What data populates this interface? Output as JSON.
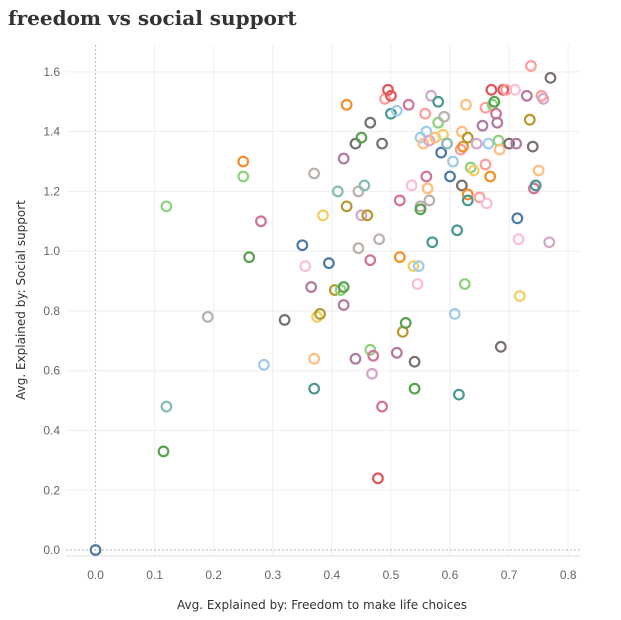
{
  "chart_data": {
    "type": "scatter",
    "title": "freedom vs social support",
    "xlabel": "Avg. Explained by: Freedom to make life choices",
    "ylabel": "Avg. Explained by: Social support",
    "xlim": [
      -0.05,
      0.82
    ],
    "ylim": [
      -0.02,
      1.69
    ],
    "xticks": [
      "0.0",
      "0.1",
      "0.2",
      "0.3",
      "0.4",
      "0.5",
      "0.6",
      "0.7",
      "0.8"
    ],
    "yticks": [
      "0.0",
      "0.2",
      "0.4",
      "0.6",
      "0.8",
      "1.0",
      "1.2",
      "1.4",
      "1.6"
    ],
    "grid": true,
    "legend": "none",
    "palette": [
      "#4e79a7",
      "#a0cbe8",
      "#f28e2b",
      "#ffbe7d",
      "#59a14f",
      "#8cd17d",
      "#b6992d",
      "#f1ce63",
      "#499894",
      "#86bcb6",
      "#e15759",
      "#ff9d9a",
      "#79706e",
      "#bab0ac",
      "#d37295",
      "#fabfd2",
      "#b07aa1",
      "#d4a6c8"
    ],
    "points": [
      {
        "x": 0.0,
        "y": 0.0,
        "c": "#4e79a7"
      },
      {
        "x": 0.12,
        "y": 1.15,
        "c": "#8cd17d"
      },
      {
        "x": 0.12,
        "y": 0.48,
        "c": "#86bcb6"
      },
      {
        "x": 0.115,
        "y": 0.33,
        "c": "#59a14f"
      },
      {
        "x": 0.19,
        "y": 0.78,
        "c": "#bab0ac"
      },
      {
        "x": 0.25,
        "y": 1.3,
        "c": "#f28e2b"
      },
      {
        "x": 0.25,
        "y": 1.25,
        "c": "#8cd17d"
      },
      {
        "x": 0.26,
        "y": 0.98,
        "c": "#59a14f"
      },
      {
        "x": 0.28,
        "y": 1.1,
        "c": "#d37295"
      },
      {
        "x": 0.285,
        "y": 0.62,
        "c": "#a0cbe8"
      },
      {
        "x": 0.32,
        "y": 0.77,
        "c": "#79706e"
      },
      {
        "x": 0.35,
        "y": 1.02,
        "c": "#4e79a7"
      },
      {
        "x": 0.355,
        "y": 0.95,
        "c": "#fabfd2"
      },
      {
        "x": 0.365,
        "y": 0.88,
        "c": "#b07aa1"
      },
      {
        "x": 0.37,
        "y": 1.26,
        "c": "#bab0ac"
      },
      {
        "x": 0.37,
        "y": 0.64,
        "c": "#ffbe7d"
      },
      {
        "x": 0.37,
        "y": 0.54,
        "c": "#499894"
      },
      {
        "x": 0.375,
        "y": 0.78,
        "c": "#f1ce63"
      },
      {
        "x": 0.38,
        "y": 0.79,
        "c": "#b6992d"
      },
      {
        "x": 0.385,
        "y": 1.12,
        "c": "#f1ce63"
      },
      {
        "x": 0.395,
        "y": 0.96,
        "c": "#4e79a7"
      },
      {
        "x": 0.405,
        "y": 0.87,
        "c": "#b6992d"
      },
      {
        "x": 0.41,
        "y": 1.2,
        "c": "#86bcb6"
      },
      {
        "x": 0.415,
        "y": 0.87,
        "c": "#8cd17d"
      },
      {
        "x": 0.42,
        "y": 1.31,
        "c": "#b07aa1"
      },
      {
        "x": 0.42,
        "y": 0.88,
        "c": "#59a14f"
      },
      {
        "x": 0.42,
        "y": 0.82,
        "c": "#b07aa1"
      },
      {
        "x": 0.425,
        "y": 1.49,
        "c": "#f28e2b"
      },
      {
        "x": 0.425,
        "y": 1.15,
        "c": "#b6992d"
      },
      {
        "x": 0.44,
        "y": 1.36,
        "c": "#79706e"
      },
      {
        "x": 0.44,
        "y": 0.64,
        "c": "#b07aa1"
      },
      {
        "x": 0.445,
        "y": 1.2,
        "c": "#bab0ac"
      },
      {
        "x": 0.445,
        "y": 1.01,
        "c": "#bab0ac"
      },
      {
        "x": 0.45,
        "y": 1.38,
        "c": "#59a14f"
      },
      {
        "x": 0.45,
        "y": 1.12,
        "c": "#d4a6c8"
      },
      {
        "x": 0.455,
        "y": 1.22,
        "c": "#86bcb6"
      },
      {
        "x": 0.46,
        "y": 1.12,
        "c": "#b6992d"
      },
      {
        "x": 0.465,
        "y": 1.43,
        "c": "#79706e"
      },
      {
        "x": 0.465,
        "y": 0.97,
        "c": "#d37295"
      },
      {
        "x": 0.465,
        "y": 0.67,
        "c": "#8cd17d"
      },
      {
        "x": 0.468,
        "y": 0.59,
        "c": "#d4a6c8"
      },
      {
        "x": 0.47,
        "y": 0.65,
        "c": "#d37295"
      },
      {
        "x": 0.478,
        "y": 0.24,
        "c": "#e15759"
      },
      {
        "x": 0.48,
        "y": 1.04,
        "c": "#bab0ac"
      },
      {
        "x": 0.485,
        "y": 1.36,
        "c": "#79706e"
      },
      {
        "x": 0.485,
        "y": 0.48,
        "c": "#d37295"
      },
      {
        "x": 0.49,
        "y": 1.51,
        "c": "#ff9d9a"
      },
      {
        "x": 0.495,
        "y": 1.54,
        "c": "#e15759"
      },
      {
        "x": 0.5,
        "y": 1.52,
        "c": "#e15759"
      },
      {
        "x": 0.5,
        "y": 1.46,
        "c": "#499894"
      },
      {
        "x": 0.51,
        "y": 1.47,
        "c": "#a0cbe8"
      },
      {
        "x": 0.51,
        "y": 0.66,
        "c": "#b07aa1"
      },
      {
        "x": 0.515,
        "y": 1.17,
        "c": "#d37295"
      },
      {
        "x": 0.515,
        "y": 0.98,
        "c": "#f28e2b"
      },
      {
        "x": 0.52,
        "y": 0.73,
        "c": "#b6992d"
      },
      {
        "x": 0.525,
        "y": 0.76,
        "c": "#59a14f"
      },
      {
        "x": 0.53,
        "y": 1.49,
        "c": "#d37295"
      },
      {
        "x": 0.535,
        "y": 1.22,
        "c": "#fabfd2"
      },
      {
        "x": 0.538,
        "y": 0.95,
        "c": "#f1ce63"
      },
      {
        "x": 0.54,
        "y": 0.63,
        "c": "#79706e"
      },
      {
        "x": 0.54,
        "y": 0.54,
        "c": "#59a14f"
      },
      {
        "x": 0.545,
        "y": 0.89,
        "c": "#fabfd2"
      },
      {
        "x": 0.547,
        "y": 0.95,
        "c": "#a0cbe8"
      },
      {
        "x": 0.55,
        "y": 1.38,
        "c": "#a0cbe8"
      },
      {
        "x": 0.55,
        "y": 1.15,
        "c": "#bab0ac"
      },
      {
        "x": 0.55,
        "y": 1.14,
        "c": "#59a14f"
      },
      {
        "x": 0.555,
        "y": 1.36,
        "c": "#ffbe7d"
      },
      {
        "x": 0.558,
        "y": 1.46,
        "c": "#ff9d9a"
      },
      {
        "x": 0.56,
        "y": 1.4,
        "c": "#a0cbe8"
      },
      {
        "x": 0.56,
        "y": 1.25,
        "c": "#d37295"
      },
      {
        "x": 0.562,
        "y": 1.21,
        "c": "#ffbe7d"
      },
      {
        "x": 0.565,
        "y": 1.17,
        "c": "#bab0ac"
      },
      {
        "x": 0.565,
        "y": 1.37,
        "c": "#d4a6c8"
      },
      {
        "x": 0.568,
        "y": 1.52,
        "c": "#d4a6c8"
      },
      {
        "x": 0.57,
        "y": 1.03,
        "c": "#499894"
      },
      {
        "x": 0.575,
        "y": 1.38,
        "c": "#ffbe7d"
      },
      {
        "x": 0.58,
        "y": 1.5,
        "c": "#499894"
      },
      {
        "x": 0.58,
        "y": 1.43,
        "c": "#8cd17d"
      },
      {
        "x": 0.585,
        "y": 1.33,
        "c": "#4e79a7"
      },
      {
        "x": 0.588,
        "y": 1.39,
        "c": "#f1ce63"
      },
      {
        "x": 0.59,
        "y": 1.45,
        "c": "#bab0ac"
      },
      {
        "x": 0.595,
        "y": 1.36,
        "c": "#86bcb6"
      },
      {
        "x": 0.6,
        "y": 1.25,
        "c": "#4e79a7"
      },
      {
        "x": 0.605,
        "y": 1.3,
        "c": "#a0cbe8"
      },
      {
        "x": 0.608,
        "y": 0.79,
        "c": "#a0cbe8"
      },
      {
        "x": 0.612,
        "y": 1.07,
        "c": "#499894"
      },
      {
        "x": 0.615,
        "y": 0.52,
        "c": "#499894"
      },
      {
        "x": 0.618,
        "y": 1.34,
        "c": "#ff9d9a"
      },
      {
        "x": 0.62,
        "y": 1.4,
        "c": "#ffbe7d"
      },
      {
        "x": 0.62,
        "y": 1.22,
        "c": "#79706e"
      },
      {
        "x": 0.622,
        "y": 1.35,
        "c": "#f28e2b"
      },
      {
        "x": 0.625,
        "y": 0.89,
        "c": "#8cd17d"
      },
      {
        "x": 0.627,
        "y": 1.49,
        "c": "#ffbe7d"
      },
      {
        "x": 0.63,
        "y": 1.38,
        "c": "#b6992d"
      },
      {
        "x": 0.63,
        "y": 1.19,
        "c": "#f28e2b"
      },
      {
        "x": 0.63,
        "y": 1.17,
        "c": "#499894"
      },
      {
        "x": 0.635,
        "y": 1.28,
        "c": "#8cd17d"
      },
      {
        "x": 0.64,
        "y": 1.27,
        "c": "#f1ce63"
      },
      {
        "x": 0.645,
        "y": 1.36,
        "c": "#d4a6c8"
      },
      {
        "x": 0.65,
        "y": 1.18,
        "c": "#ff9d9a"
      },
      {
        "x": 0.655,
        "y": 1.42,
        "c": "#b07aa1"
      },
      {
        "x": 0.66,
        "y": 1.48,
        "c": "#ff9d9a"
      },
      {
        "x": 0.66,
        "y": 1.29,
        "c": "#ff9d9a"
      },
      {
        "x": 0.662,
        "y": 1.16,
        "c": "#fabfd2"
      },
      {
        "x": 0.665,
        "y": 1.36,
        "c": "#a0cbe8"
      },
      {
        "x": 0.668,
        "y": 1.25,
        "c": "#f28e2b"
      },
      {
        "x": 0.67,
        "y": 1.54,
        "c": "#e15759"
      },
      {
        "x": 0.672,
        "y": 1.49,
        "c": "#8cd17d"
      },
      {
        "x": 0.675,
        "y": 1.5,
        "c": "#59a14f"
      },
      {
        "x": 0.678,
        "y": 1.46,
        "c": "#d37295"
      },
      {
        "x": 0.68,
        "y": 1.43,
        "c": "#b07aa1"
      },
      {
        "x": 0.682,
        "y": 1.37,
        "c": "#8cd17d"
      },
      {
        "x": 0.684,
        "y": 1.34,
        "c": "#ffbe7d"
      },
      {
        "x": 0.686,
        "y": 0.68,
        "c": "#79706e"
      },
      {
        "x": 0.69,
        "y": 1.54,
        "c": "#e15759"
      },
      {
        "x": 0.695,
        "y": 1.54,
        "c": "#ff9d9a"
      },
      {
        "x": 0.7,
        "y": 1.36,
        "c": "#79706e"
      },
      {
        "x": 0.71,
        "y": 1.54,
        "c": "#fabfd2"
      },
      {
        "x": 0.712,
        "y": 1.36,
        "c": "#b07aa1"
      },
      {
        "x": 0.714,
        "y": 1.11,
        "c": "#4e79a7"
      },
      {
        "x": 0.716,
        "y": 1.04,
        "c": "#fabfd2"
      },
      {
        "x": 0.718,
        "y": 0.85,
        "c": "#f1ce63"
      },
      {
        "x": 0.73,
        "y": 1.52,
        "c": "#b07aa1"
      },
      {
        "x": 0.735,
        "y": 1.44,
        "c": "#b6992d"
      },
      {
        "x": 0.737,
        "y": 1.62,
        "c": "#ff9d9a"
      },
      {
        "x": 0.74,
        "y": 1.35,
        "c": "#79706e"
      },
      {
        "x": 0.742,
        "y": 1.21,
        "c": "#d37295"
      },
      {
        "x": 0.745,
        "y": 1.22,
        "c": "#499894"
      },
      {
        "x": 0.75,
        "y": 1.27,
        "c": "#ffbe7d"
      },
      {
        "x": 0.755,
        "y": 1.52,
        "c": "#ff9d9a"
      },
      {
        "x": 0.758,
        "y": 1.51,
        "c": "#d4a6c8"
      },
      {
        "x": 0.768,
        "y": 1.03,
        "c": "#d4a6c8"
      },
      {
        "x": 0.77,
        "y": 1.58,
        "c": "#79706e"
      }
    ]
  }
}
